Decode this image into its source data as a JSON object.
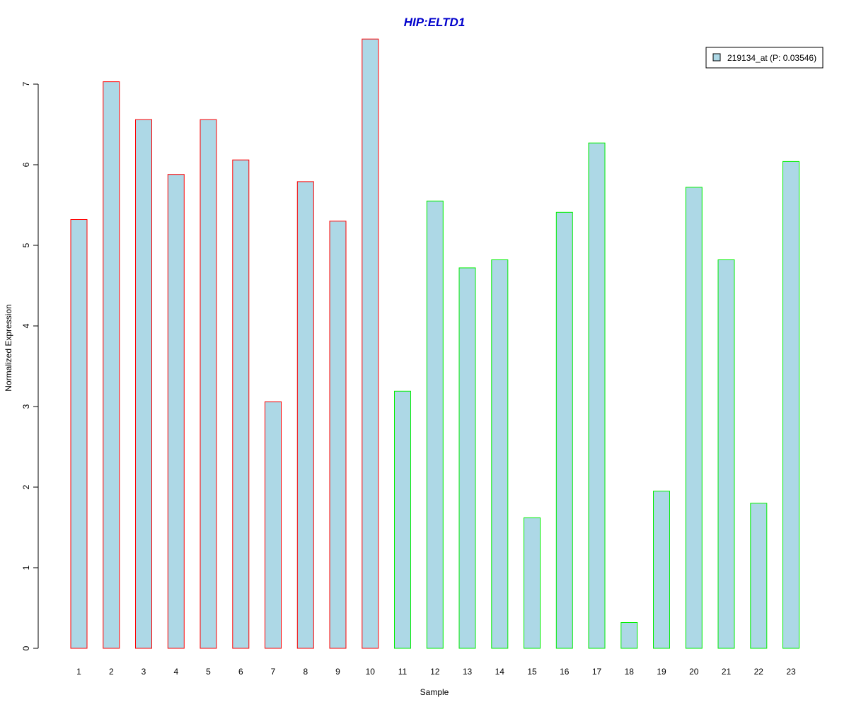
{
  "chart_data": {
    "type": "bar",
    "title": "HIP:ELTD1",
    "xlabel": "Sample",
    "ylabel": "Normalized Expression",
    "categories": [
      "1",
      "2",
      "3",
      "4",
      "5",
      "6",
      "7",
      "8",
      "9",
      "10",
      "11",
      "12",
      "13",
      "14",
      "15",
      "16",
      "17",
      "18",
      "19",
      "20",
      "21",
      "22",
      "23"
    ],
    "series": [
      {
        "name": "219134_at (P: 0.03546)",
        "values": [
          5.32,
          7.03,
          6.56,
          5.88,
          6.56,
          6.06,
          3.06,
          5.79,
          5.3,
          7.56,
          3.19,
          5.55,
          4.72,
          4.82,
          1.62,
          5.41,
          6.27,
          0.32,
          1.95,
          5.72,
          4.82,
          1.8,
          6.04
        ]
      }
    ],
    "bar_groups": [
      "group1",
      "group1",
      "group1",
      "group1",
      "group1",
      "group1",
      "group1",
      "group1",
      "group1",
      "group1",
      "group2",
      "group2",
      "group2",
      "group2",
      "group2",
      "group2",
      "group2",
      "group2",
      "group2",
      "group2",
      "group2",
      "group2",
      "group2"
    ],
    "ylim": [
      0,
      7.6
    ],
    "yticks": [
      0,
      1,
      2,
      3,
      4,
      5,
      6,
      7
    ],
    "grid": false,
    "legend_position": "top-right",
    "colors": {
      "title": "#0000cc",
      "bar_fill": "#add8e6",
      "group1_border": "#ff0000",
      "group2_border": "#00ee00",
      "axis": "#000000"
    }
  }
}
